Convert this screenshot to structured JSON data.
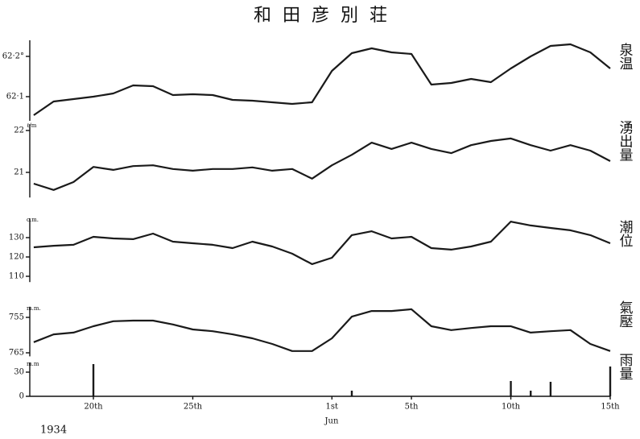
{
  "title": "和田彦別荘",
  "x_axis": {
    "xlim": [
      16.8,
      46
    ],
    "xticks": [
      {
        "value": 20,
        "label": "20th"
      },
      {
        "value": 25,
        "label": "25th"
      },
      {
        "value": 32,
        "label": "1st"
      },
      {
        "value": 36,
        "label": "5th"
      },
      {
        "value": 41,
        "label": "10th"
      },
      {
        "value": 46,
        "label": "15th"
      }
    ],
    "month_label": "Jun",
    "year": "1934"
  },
  "chart_data": [
    {
      "type": "line",
      "label": "泉温",
      "color": "#1a1a1a",
      "x": [
        17,
        18,
        19,
        20,
        21,
        22,
        23,
        24,
        25,
        26,
        27,
        28,
        29,
        30,
        31,
        32,
        33,
        34,
        35,
        36,
        37,
        38,
        39,
        40,
        41,
        42,
        43,
        44,
        45,
        46
      ],
      "values": [
        62.054,
        62.088,
        62.094,
        62.1,
        62.108,
        62.128,
        62.126,
        62.104,
        62.106,
        62.104,
        62.092,
        62.09,
        62.086,
        62.082,
        62.086,
        62.164,
        62.208,
        62.22,
        62.21,
        62.206,
        62.13,
        62.134,
        62.144,
        62.136,
        62.17,
        62.2,
        62.226,
        62.23,
        62.21,
        62.17
      ],
      "ylim": [
        62.04,
        62.24
      ],
      "yticks": [
        {
          "value": 62.1,
          "label": "62·1"
        },
        {
          "value": 62.2,
          "label": "62·2°"
        }
      ]
    },
    {
      "type": "line",
      "label": "湧出量",
      "unit": "ℓ/m",
      "color": "#1a1a1a",
      "x": [
        17,
        18,
        19,
        20,
        21,
        22,
        23,
        24,
        25,
        26,
        27,
        28,
        29,
        30,
        31,
        32,
        33,
        34,
        35,
        36,
        37,
        38,
        39,
        40,
        41,
        42,
        43,
        44,
        45,
        46
      ],
      "values": [
        20.73,
        20.58,
        20.77,
        21.13,
        21.06,
        21.15,
        21.17,
        21.08,
        21.04,
        21.08,
        21.08,
        21.12,
        21.04,
        21.08,
        20.85,
        21.17,
        21.42,
        21.71,
        21.56,
        21.71,
        21.56,
        21.46,
        21.65,
        21.75,
        21.81,
        21.65,
        21.52,
        21.65,
        21.52,
        21.27
      ],
      "ylim": [
        20.4,
        22.15
      ],
      "yticks": [
        21,
        22
      ]
    },
    {
      "type": "line",
      "label": "潮位",
      "unit": "c.m.",
      "color": "#1a1a1a",
      "x": [
        17,
        18,
        19,
        20,
        21,
        22,
        23,
        24,
        25,
        26,
        27,
        28,
        29,
        30,
        31,
        32,
        33,
        34,
        35,
        36,
        37,
        38,
        39,
        40,
        41,
        42,
        43,
        44,
        45,
        46
      ],
      "values": [
        125,
        125.8,
        126.3,
        130.4,
        129.6,
        129.2,
        132.1,
        127.9,
        127.1,
        126.3,
        124.6,
        127.9,
        125.4,
        121.7,
        116.3,
        119.6,
        131.3,
        133.3,
        129.6,
        130.4,
        124.6,
        123.8,
        125.4,
        127.9,
        138.3,
        136.3,
        135,
        133.8,
        131.3,
        127.1
      ],
      "ylim": [
        107,
        140
      ],
      "yticks": [
        110,
        120,
        130
      ]
    },
    {
      "type": "line",
      "label": "氣壓",
      "unit": "m.m.",
      "color": "#1a1a1a",
      "x": [
        17,
        18,
        19,
        20,
        21,
        22,
        23,
        24,
        25,
        26,
        27,
        28,
        29,
        30,
        31,
        32,
        33,
        34,
        35,
        36,
        37,
        38,
        39,
        40,
        41,
        42,
        43,
        44,
        45,
        46
      ],
      "values": [
        762,
        759.8,
        759.3,
        757.5,
        756.1,
        755.9,
        755.9,
        757,
        758.4,
        758.9,
        759.8,
        760.9,
        762.5,
        764.5,
        764.5,
        760.9,
        754.8,
        753.2,
        753.2,
        752.7,
        757.5,
        758.6,
        758,
        757.5,
        757.5,
        759.3,
        758.9,
        758.6,
        762.5,
        764.5
      ],
      "ylim": [
        766,
        752
      ],
      "yticks": [
        755,
        765
      ]
    },
    {
      "type": "bar",
      "label": "雨量",
      "unit": "m.m",
      "color": "#1a1a1a",
      "x": [
        20,
        33,
        41,
        42,
        43,
        46
      ],
      "values": [
        40,
        7,
        19,
        7,
        18,
        37
      ],
      "ylim": [
        0,
        42
      ],
      "yticks": [
        0,
        30
      ]
    }
  ]
}
